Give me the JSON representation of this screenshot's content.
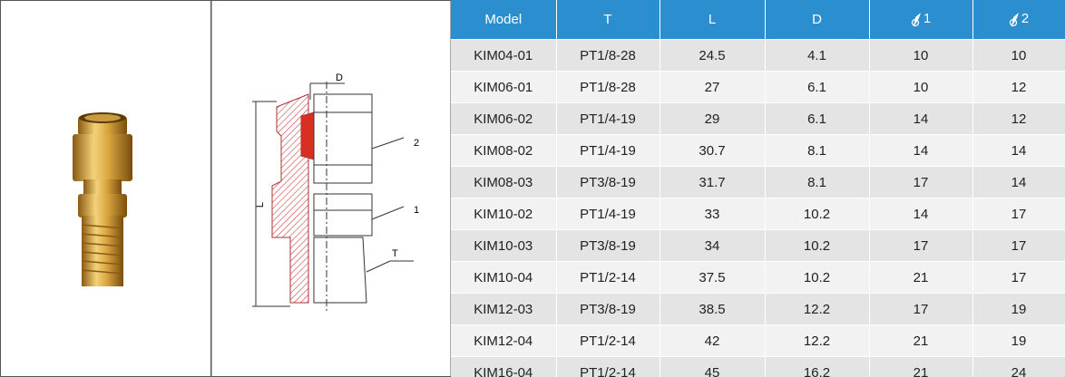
{
  "drawing": {
    "labels": {
      "d": "D",
      "l": "L",
      "t": "T",
      "d2": "2",
      "d1": "1"
    }
  },
  "table": {
    "headers": [
      "Model",
      "T",
      "L",
      "D",
      "1",
      "2"
    ],
    "rows": [
      [
        "KIM04-01",
        "PT1/8-28",
        "24.5",
        "4.1",
        "10",
        "10"
      ],
      [
        "KIM06-01",
        "PT1/8-28",
        "27",
        "6.1",
        "10",
        "12"
      ],
      [
        "KIM06-02",
        "PT1/4-19",
        "29",
        "6.1",
        "14",
        "12"
      ],
      [
        "KIM08-02",
        "PT1/4-19",
        "30.7",
        "8.1",
        "14",
        "14"
      ],
      [
        "KIM08-03",
        "PT3/8-19",
        "31.7",
        "8.1",
        "17",
        "14"
      ],
      [
        "KIM10-02",
        "PT1/4-19",
        "33",
        "10.2",
        "14",
        "17"
      ],
      [
        "KIM10-03",
        "PT3/8-19",
        "34",
        "10.2",
        "17",
        "17"
      ],
      [
        "KIM10-04",
        "PT1/2-14",
        "37.5",
        "10.2",
        "21",
        "17"
      ],
      [
        "KIM12-03",
        "PT3/8-19",
        "38.5",
        "12.2",
        "17",
        "19"
      ],
      [
        "KIM12-04",
        "PT1/2-14",
        "42",
        "12.2",
        "21",
        "19"
      ],
      [
        "KIM16-04",
        "PT1/2-14",
        "45",
        "16.2",
        "21",
        "24"
      ]
    ]
  }
}
